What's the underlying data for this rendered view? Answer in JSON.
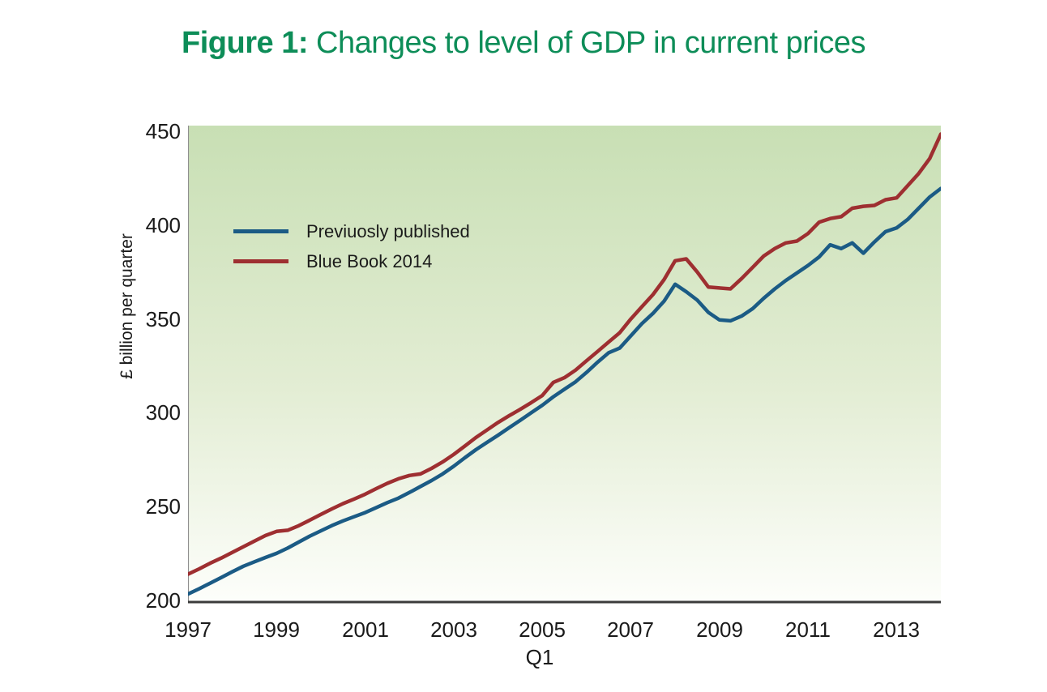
{
  "figure": {
    "title_prefix": "Figure 1:",
    "title_rest": " Changes to level of GDP in current prices",
    "title_color": "#0d8d58"
  },
  "axes": {
    "y_tick_labels_desc": [
      "450",
      "400",
      "350",
      "300",
      "250",
      "200"
    ],
    "x_tick_labels": [
      "1997",
      "1999",
      "2001",
      "2003",
      "2005",
      "2007",
      "2009",
      "2011",
      "2013"
    ],
    "y_axis_title": "£ billion per quarter",
    "x_axis_sub_label": "Q1"
  },
  "legend": {
    "items": [
      {
        "label": "Previuosly published"
      },
      {
        "label": "Blue Book 2014"
      }
    ]
  },
  "chart_data": {
    "type": "line",
    "title": "Figure 1: Changes to level of GDP in current prices",
    "ylabel": "£ billion per quarter",
    "xlabel": "Q1",
    "ylim": [
      200,
      450
    ],
    "y_ticks": [
      200,
      250,
      300,
      350,
      400,
      450
    ],
    "x_tick_labels": [
      "1997",
      "1999",
      "2001",
      "2003",
      "2005",
      "2007",
      "2009",
      "2011",
      "2013"
    ],
    "x_range": {
      "start": "1997 Q1",
      "end": "2014 Q1",
      "frequency": "quarterly",
      "count": 69
    },
    "grid": false,
    "legend_position": "inside top-left",
    "plot_bg_gradient": [
      "#c8dfb4",
      "#e3edd4",
      "#fdfefb"
    ],
    "axis_line_color": "#3b3b3b",
    "y_spine_color": "#8f8f8f",
    "series": [
      {
        "name": "Previuosly published",
        "color": "#1b5b85",
        "values": [
          203.4,
          206.2,
          209.2,
          212.2,
          215.3,
          218.2,
          220.6,
          222.9,
          225.1,
          227.9,
          231.1,
          234.3,
          237.1,
          239.9,
          242.4,
          244.6,
          246.8,
          249.5,
          252.1,
          254.5,
          257.5,
          260.7,
          263.9,
          267.4,
          271.5,
          276.0,
          280.3,
          284.2,
          288.0,
          292.0,
          296.0,
          300.0,
          304.0,
          308.5,
          312.5,
          316.5,
          321.5,
          327.0,
          332.0,
          334.5,
          341.0,
          347.5,
          353.0,
          359.5,
          368.5,
          364.5,
          360.0,
          353.5,
          349.5,
          349.0,
          351.5,
          355.5,
          361.0,
          366.0,
          370.5,
          374.5,
          378.5,
          383.0,
          389.5,
          387.5,
          390.5,
          385.0,
          391.0,
          396.5,
          398.5,
          403.0,
          409.0,
          415.0,
          419.5
        ]
      },
      {
        "name": "Blue Book 2014",
        "color": "#9e2f31",
        "values": [
          214.0,
          216.8,
          219.8,
          222.6,
          225.6,
          228.6,
          231.6,
          234.6,
          236.8,
          237.4,
          239.8,
          242.8,
          245.8,
          248.8,
          251.6,
          254.0,
          256.6,
          259.6,
          262.4,
          264.8,
          266.6,
          267.4,
          270.4,
          273.8,
          277.8,
          282.2,
          286.8,
          290.8,
          294.8,
          298.4,
          301.8,
          305.4,
          309.2,
          316.2,
          318.7,
          322.7,
          327.7,
          332.7,
          337.7,
          342.7,
          350.0,
          356.5,
          363.0,
          371.0,
          381.0,
          382.0,
          375.0,
          367.0,
          366.5,
          366.0,
          371.5,
          377.5,
          383.5,
          387.5,
          390.5,
          391.5,
          395.5,
          401.5,
          403.5,
          404.5,
          409.0,
          410.0,
          410.5,
          413.5,
          414.5,
          421.0,
          427.5,
          435.5,
          448.5
        ]
      }
    ]
  }
}
